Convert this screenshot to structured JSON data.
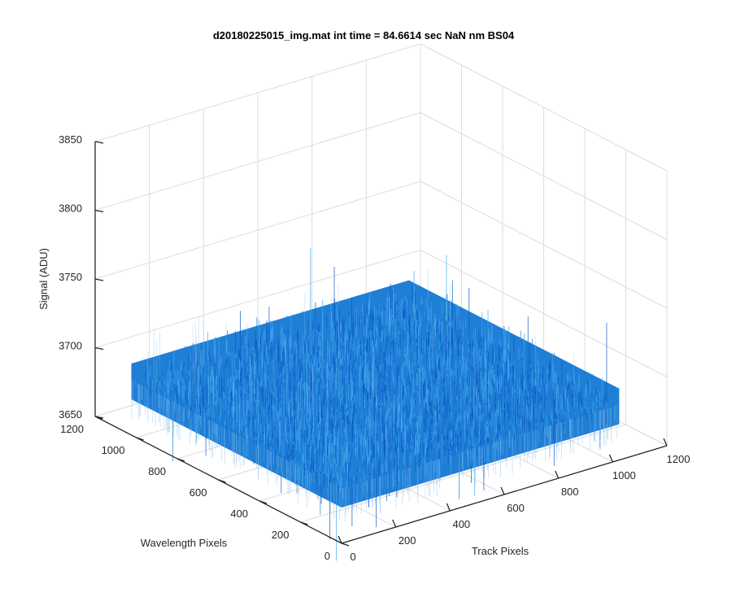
{
  "chart_data": {
    "type": "surface",
    "title": "d20180225015_img.mat int time = 84.6614 sec  NaN nm BS04",
    "xlabel": "Track Pixels",
    "ylabel": "Wavelength Pixels",
    "zlabel": "Signal (ADU)",
    "xlim": [
      0,
      1200
    ],
    "ylim": [
      0,
      1200
    ],
    "zlim": [
      3650,
      3850
    ],
    "xticks": [
      0,
      200,
      400,
      600,
      800,
      1000,
      1200
    ],
    "yticks": [
      0,
      200,
      400,
      600,
      800,
      1000,
      1200
    ],
    "zticks": [
      3650,
      3700,
      3750,
      3800,
      3850
    ],
    "data_extent": {
      "track_pixels": [
        0,
        1024
      ],
      "wavelength_pixels": [
        0,
        1024
      ]
    },
    "mean_signal": 3690,
    "noise_band": [
      3665,
      3715
    ],
    "grid": "on",
    "colors": {
      "surface_base": "#1f7fd6",
      "surface_light": "#3fa9ee",
      "surface_dark": "#0b58c4",
      "grid": "#dcdcdc",
      "axes": "#262626"
    }
  }
}
